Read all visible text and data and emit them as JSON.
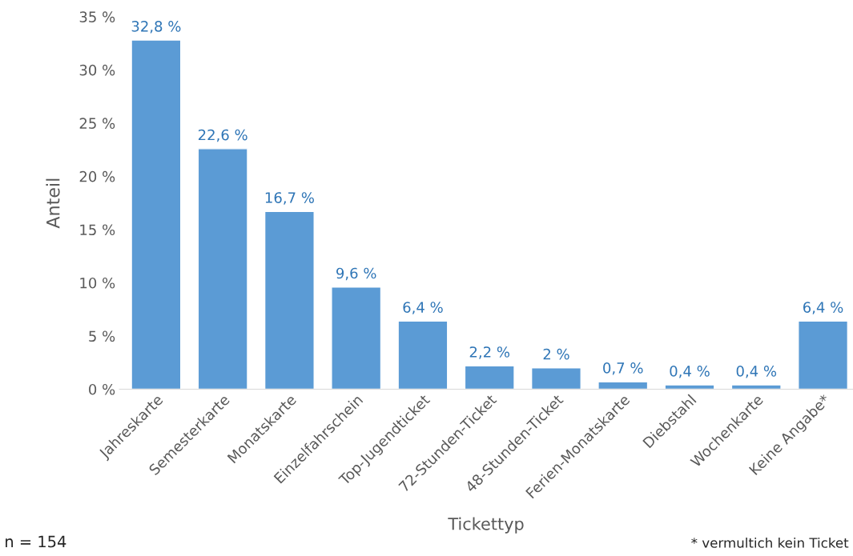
{
  "chart_data": {
    "type": "bar",
    "xlabel": "Tickettyp",
    "ylabel": "Anteil",
    "categories": [
      "Jahreskarte",
      "Semesterkarte",
      "Monatskarte",
      "Einzelfahrschein",
      "Top-Jugendticket",
      "72-Stunden-Ticket",
      "48-Stunden-Ticket",
      "Ferien-Monatskarte",
      "Diebstahl",
      "Wochenkarte",
      "Keine Angabe*"
    ],
    "values": [
      32.8,
      22.6,
      16.7,
      9.6,
      6.4,
      2.2,
      2,
      0.7,
      0.4,
      0.4,
      6.4
    ],
    "value_labels": [
      "32,8 %",
      "22,6 %",
      "16,7 %",
      "9,6 %",
      "6,4 %",
      "2,2 %",
      "2 %",
      "0,7 %",
      "0,4 %",
      "0,4 %",
      "6,4 %"
    ],
    "color": "#5b9bd5",
    "ylim": [
      0,
      35
    ],
    "yticks": [
      {
        "value": 0,
        "label": "0 %"
      },
      {
        "value": 5,
        "label": "5 %"
      },
      {
        "value": 10,
        "label": "10 %"
      },
      {
        "value": 15,
        "label": "15 %"
      },
      {
        "value": 20,
        "label": "20 %"
      },
      {
        "value": 25,
        "label": "25 %"
      },
      {
        "value": 30,
        "label": "30 %"
      },
      {
        "value": 35,
        "label": "35 %"
      }
    ],
    "grid": false,
    "legend": false,
    "annotations": [
      "n = 154",
      "* vermultich kein Ticket"
    ]
  }
}
